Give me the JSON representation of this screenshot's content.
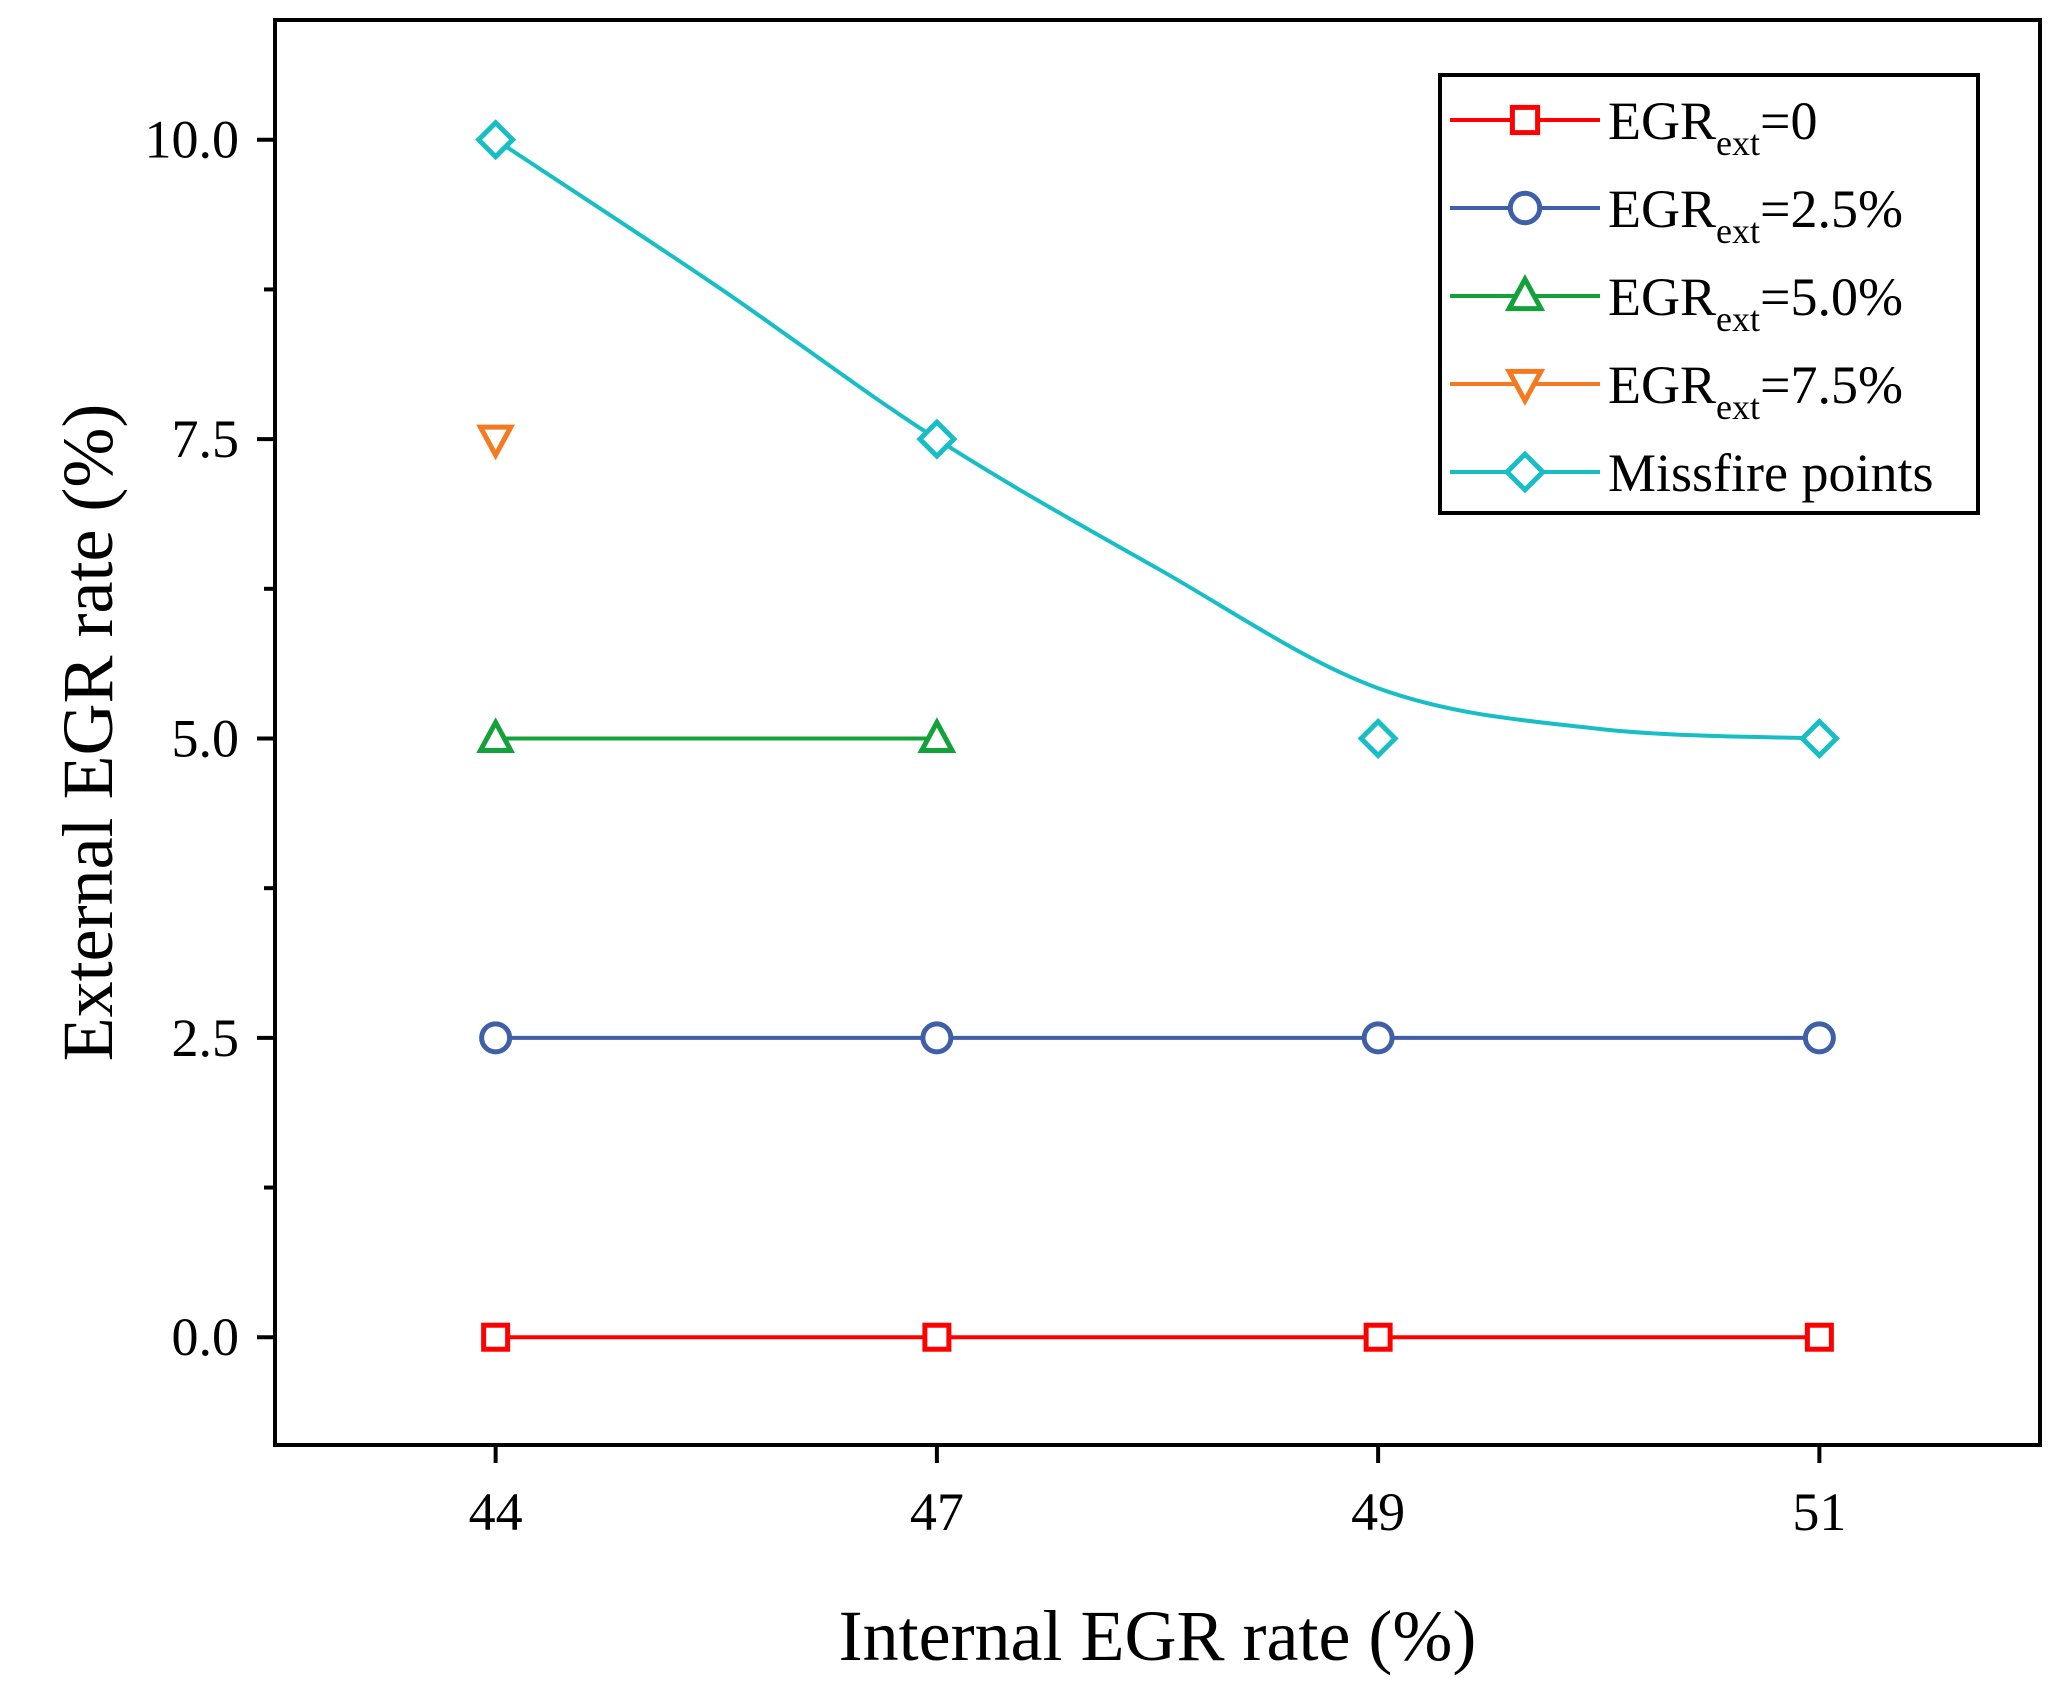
{
  "chart_data": {
    "type": "line",
    "title": "",
    "xlabel": "Internal EGR rate (%)",
    "ylabel": "External EGR rate (%)",
    "categories": [
      "44",
      "47",
      "49",
      "51"
    ],
    "x_positions": [
      0,
      1,
      2,
      3
    ],
    "xlim": [
      -0.5,
      3.5
    ],
    "ylim": [
      -0.9,
      11.0
    ],
    "yticks": [
      "0.0",
      "2.5",
      "5.0",
      "7.5",
      "10.0"
    ],
    "ytick_values": [
      0,
      2.5,
      5.0,
      7.5,
      10.0
    ],
    "y_minor_ticks": [
      1.25,
      3.75,
      6.25,
      8.75
    ],
    "legend_position": "top-right",
    "series": [
      {
        "name": "EGR_ext=0",
        "legend_main": "EGR",
        "legend_sub": "ext",
        "legend_suffix": "=0",
        "color": "#ff0000",
        "marker": "square",
        "line": "straight",
        "points": [
          [
            0,
            0
          ],
          [
            1,
            0
          ],
          [
            2,
            0
          ],
          [
            3,
            0
          ]
        ]
      },
      {
        "name": "EGR_ext=2.5%",
        "legend_main": "EGR",
        "legend_sub": "ext",
        "legend_suffix": "=2.5%",
        "color": "#3f5fa8",
        "marker": "circle",
        "line": "straight",
        "points": [
          [
            0,
            2.5
          ],
          [
            1,
            2.5
          ],
          [
            2,
            2.5
          ],
          [
            3,
            2.5
          ]
        ]
      },
      {
        "name": "EGR_ext=5.0%",
        "legend_main": "EGR",
        "legend_sub": "ext",
        "legend_suffix": "=5.0%",
        "color": "#13a13a",
        "marker": "triangle-up",
        "line": "straight",
        "points": [
          [
            0,
            5.0
          ],
          [
            1,
            5.0
          ]
        ]
      },
      {
        "name": "EGR_ext=7.5%",
        "legend_main": "EGR",
        "legend_sub": "ext",
        "legend_suffix": "=7.5%",
        "color": "#f47a20",
        "marker": "triangle-down",
        "line": "none",
        "points": [
          [
            0,
            7.5
          ]
        ]
      },
      {
        "name": "Missfire points",
        "legend_main": "Missfire points",
        "legend_sub": "",
        "legend_suffix": "",
        "color": "#17bec6",
        "marker": "diamond",
        "line": "smooth",
        "points": [
          [
            0,
            10.0
          ],
          [
            1,
            7.5
          ],
          [
            2,
            5.0
          ],
          [
            3,
            5.0
          ]
        ],
        "fit_curve": [
          [
            0,
            10.0
          ],
          [
            0.5,
            8.78
          ],
          [
            1,
            7.5
          ],
          [
            1.5,
            6.42
          ],
          [
            2,
            5.42
          ],
          [
            2.5,
            5.08
          ],
          [
            3,
            5.0
          ]
        ]
      }
    ]
  }
}
